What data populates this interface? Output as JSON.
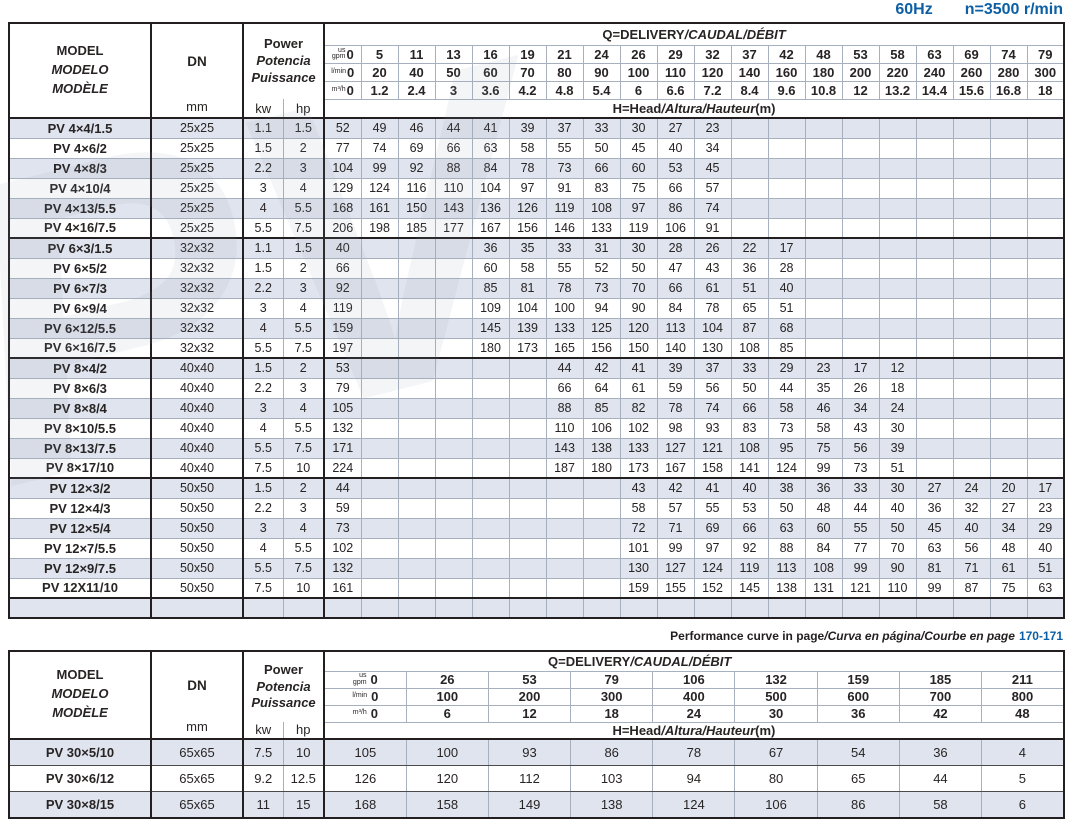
{
  "topbar": {
    "frequency": "60Hz",
    "speed": "n=3500 r/min"
  },
  "labels": {
    "model_lines": [
      "MODEL",
      "MODELO",
      "MODÈLE"
    ],
    "dn": "DN",
    "dn_unit": "mm",
    "power_lines": [
      "Power",
      "Potencia",
      "Puissance"
    ],
    "kw": "kw",
    "hp": "hp",
    "q_title": {
      "plain": "Q=DELIVERY",
      "italic": "/CAUDAL/DÉBIT"
    },
    "h_title": {
      "plain": "H=Head",
      "italic": "/Altura/Hauteur",
      "suffix": "(m)"
    },
    "units": {
      "gpm_top": "us",
      "gpm": "gpm",
      "lmin": "l/min",
      "m3h": "m³/h"
    }
  },
  "note": {
    "plain": "Performance curve in page",
    "italic": "/Curva en página/Courbe en page",
    "pages": "170-171"
  },
  "colors": {
    "accent_blue": "#0c5fa5",
    "stripe": "#dfe4ee",
    "grid_line": "#a7b0bf",
    "border": "#231f20"
  },
  "watermark": "PV",
  "table1": {
    "flows": {
      "gpm": [
        "0",
        "5",
        "11",
        "13",
        "16",
        "19",
        "21",
        "24",
        "26",
        "29",
        "32",
        "37",
        "42",
        "48",
        "53",
        "58",
        "63",
        "69",
        "74",
        "79"
      ],
      "lmin": [
        "0",
        "20",
        "40",
        "50",
        "60",
        "70",
        "80",
        "90",
        "100",
        "110",
        "120",
        "140",
        "160",
        "180",
        "200",
        "220",
        "240",
        "260",
        "280",
        "300"
      ],
      "m3h": [
        "0",
        "1.2",
        "2.4",
        "3",
        "3.6",
        "4.2",
        "4.8",
        "5.4",
        "6",
        "6.6",
        "7.2",
        "8.4",
        "9.6",
        "10.8",
        "12",
        "13.2",
        "14.4",
        "15.6",
        "16.8",
        "18"
      ]
    },
    "groups": [
      {
        "rows": [
          {
            "model": "PV 4×4/1.5",
            "dn": "25x25",
            "kw": "1.1",
            "hp": "1.5",
            "heads": [
              "52",
              "49",
              "46",
              "44",
              "41",
              "39",
              "37",
              "33",
              "30",
              "27",
              "23",
              "",
              "",
              "",
              "",
              "",
              "",
              "",
              "",
              ""
            ]
          },
          {
            "model": "PV 4×6/2",
            "dn": "25x25",
            "kw": "1.5",
            "hp": "2",
            "heads": [
              "77",
              "74",
              "69",
              "66",
              "63",
              "58",
              "55",
              "50",
              "45",
              "40",
              "34",
              "",
              "",
              "",
              "",
              "",
              "",
              "",
              "",
              ""
            ]
          },
          {
            "model": "PV 4×8/3",
            "dn": "25x25",
            "kw": "2.2",
            "hp": "3",
            "heads": [
              "104",
              "99",
              "92",
              "88",
              "84",
              "78",
              "73",
              "66",
              "60",
              "53",
              "45",
              "",
              "",
              "",
              "",
              "",
              "",
              "",
              "",
              ""
            ]
          },
          {
            "model": "PV 4×10/4",
            "dn": "25x25",
            "kw": "3",
            "hp": "4",
            "heads": [
              "129",
              "124",
              "116",
              "110",
              "104",
              "97",
              "91",
              "83",
              "75",
              "66",
              "57",
              "",
              "",
              "",
              "",
              "",
              "",
              "",
              "",
              ""
            ]
          },
          {
            "model": "PV 4×13/5.5",
            "dn": "25x25",
            "kw": "4",
            "hp": "5.5",
            "heads": [
              "168",
              "161",
              "150",
              "143",
              "136",
              "126",
              "119",
              "108",
              "97",
              "86",
              "74",
              "",
              "",
              "",
              "",
              "",
              "",
              "",
              "",
              ""
            ]
          },
          {
            "model": "PV 4×16/7.5",
            "dn": "25x25",
            "kw": "5.5",
            "hp": "7.5",
            "heads": [
              "206",
              "198",
              "185",
              "177",
              "167",
              "156",
              "146",
              "133",
              "119",
              "106",
              "91",
              "",
              "",
              "",
              "",
              "",
              "",
              "",
              "",
              ""
            ]
          }
        ]
      },
      {
        "rows": [
          {
            "model": "PV 6×3/1.5",
            "dn": "32x32",
            "kw": "1.1",
            "hp": "1.5",
            "heads": [
              "40",
              "",
              "",
              "",
              "36",
              "35",
              "33",
              "31",
              "30",
              "28",
              "26",
              "22",
              "17",
              "",
              "",
              "",
              "",
              "",
              "",
              ""
            ]
          },
          {
            "model": "PV 6×5/2",
            "dn": "32x32",
            "kw": "1.5",
            "hp": "2",
            "heads": [
              "66",
              "",
              "",
              "",
              "60",
              "58",
              "55",
              "52",
              "50",
              "47",
              "43",
              "36",
              "28",
              "",
              "",
              "",
              "",
              "",
              "",
              ""
            ]
          },
          {
            "model": "PV 6×7/3",
            "dn": "32x32",
            "kw": "2.2",
            "hp": "3",
            "heads": [
              "92",
              "",
              "",
              "",
              "85",
              "81",
              "78",
              "73",
              "70",
              "66",
              "61",
              "51",
              "40",
              "",
              "",
              "",
              "",
              "",
              "",
              ""
            ]
          },
          {
            "model": "PV 6×9/4",
            "dn": "32x32",
            "kw": "3",
            "hp": "4",
            "heads": [
              "119",
              "",
              "",
              "",
              "109",
              "104",
              "100",
              "94",
              "90",
              "84",
              "78",
              "65",
              "51",
              "",
              "",
              "",
              "",
              "",
              "",
              ""
            ]
          },
          {
            "model": "PV 6×12/5.5",
            "dn": "32x32",
            "kw": "4",
            "hp": "5.5",
            "heads": [
              "159",
              "",
              "",
              "",
              "145",
              "139",
              "133",
              "125",
              "120",
              "113",
              "104",
              "87",
              "68",
              "",
              "",
              "",
              "",
              "",
              "",
              ""
            ]
          },
          {
            "model": "PV 6×16/7.5",
            "dn": "32x32",
            "kw": "5.5",
            "hp": "7.5",
            "heads": [
              "197",
              "",
              "",
              "",
              "180",
              "173",
              "165",
              "156",
              "150",
              "140",
              "130",
              "108",
              "85",
              "",
              "",
              "",
              "",
              "",
              "",
              ""
            ]
          }
        ]
      },
      {
        "rows": [
          {
            "model": "PV 8×4/2",
            "dn": "40x40",
            "kw": "1.5",
            "hp": "2",
            "heads": [
              "53",
              "",
              "",
              "",
              "",
              "",
              "44",
              "42",
              "41",
              "39",
              "37",
              "33",
              "29",
              "23",
              "17",
              "12",
              "",
              "",
              "",
              ""
            ]
          },
          {
            "model": "PV 8×6/3",
            "dn": "40x40",
            "kw": "2.2",
            "hp": "3",
            "heads": [
              "79",
              "",
              "",
              "",
              "",
              "",
              "66",
              "64",
              "61",
              "59",
              "56",
              "50",
              "44",
              "35",
              "26",
              "18",
              "",
              "",
              "",
              ""
            ]
          },
          {
            "model": "PV 8×8/4",
            "dn": "40x40",
            "kw": "3",
            "hp": "4",
            "heads": [
              "105",
              "",
              "",
              "",
              "",
              "",
              "88",
              "85",
              "82",
              "78",
              "74",
              "66",
              "58",
              "46",
              "34",
              "24",
              "",
              "",
              "",
              ""
            ]
          },
          {
            "model": "PV 8×10/5.5",
            "dn": "40x40",
            "kw": "4",
            "hp": "5.5",
            "heads": [
              "132",
              "",
              "",
              "",
              "",
              "",
              "110",
              "106",
              "102",
              "98",
              "93",
              "83",
              "73",
              "58",
              "43",
              "30",
              "",
              "",
              "",
              ""
            ]
          },
          {
            "model": "PV 8×13/7.5",
            "dn": "40x40",
            "kw": "5.5",
            "hp": "7.5",
            "heads": [
              "171",
              "",
              "",
              "",
              "",
              "",
              "143",
              "138",
              "133",
              "127",
              "121",
              "108",
              "95",
              "75",
              "56",
              "39",
              "",
              "",
              "",
              ""
            ]
          },
          {
            "model": "PV 8×17/10",
            "dn": "40x40",
            "kw": "7.5",
            "hp": "10",
            "heads": [
              "224",
              "",
              "",
              "",
              "",
              "",
              "187",
              "180",
              "173",
              "167",
              "158",
              "141",
              "124",
              "99",
              "73",
              "51",
              "",
              "",
              "",
              ""
            ]
          }
        ]
      },
      {
        "rows": [
          {
            "model": "PV 12×3/2",
            "dn": "50x50",
            "kw": "1.5",
            "hp": "2",
            "heads": [
              "44",
              "",
              "",
              "",
              "",
              "",
              "",
              "",
              "43",
              "42",
              "41",
              "40",
              "38",
              "36",
              "33",
              "30",
              "27",
              "24",
              "20",
              "17"
            ]
          },
          {
            "model": "PV 12×4/3",
            "dn": "50x50",
            "kw": "2.2",
            "hp": "3",
            "heads": [
              "59",
              "",
              "",
              "",
              "",
              "",
              "",
              "",
              "58",
              "57",
              "55",
              "53",
              "50",
              "48",
              "44",
              "40",
              "36",
              "32",
              "27",
              "23"
            ]
          },
          {
            "model": "PV 12×5/4",
            "dn": "50x50",
            "kw": "3",
            "hp": "4",
            "heads": [
              "73",
              "",
              "",
              "",
              "",
              "",
              "",
              "",
              "72",
              "71",
              "69",
              "66",
              "63",
              "60",
              "55",
              "50",
              "45",
              "40",
              "34",
              "29"
            ]
          },
          {
            "model": "PV 12×7/5.5",
            "dn": "50x50",
            "kw": "4",
            "hp": "5.5",
            "heads": [
              "102",
              "",
              "",
              "",
              "",
              "",
              "",
              "",
              "101",
              "99",
              "97",
              "92",
              "88",
              "84",
              "77",
              "70",
              "63",
              "56",
              "48",
              "40"
            ]
          },
          {
            "model": "PV 12×9/7.5",
            "dn": "50x50",
            "kw": "5.5",
            "hp": "7.5",
            "heads": [
              "132",
              "",
              "",
              "",
              "",
              "",
              "",
              "",
              "130",
              "127",
              "124",
              "119",
              "113",
              "108",
              "99",
              "90",
              "81",
              "71",
              "61",
              "51"
            ]
          },
          {
            "model": "PV 12X11/10",
            "dn": "50x50",
            "kw": "7.5",
            "hp": "10",
            "heads": [
              "161",
              "",
              "",
              "",
              "",
              "",
              "",
              "",
              "159",
              "155",
              "152",
              "145",
              "138",
              "131",
              "121",
              "110",
              "99",
              "87",
              "75",
              "63"
            ]
          }
        ]
      },
      {
        "rows": [
          {
            "model": "",
            "dn": "",
            "kw": "",
            "hp": "",
            "heads": [
              "",
              "",
              "",
              "",
              "",
              "",
              "",
              "",
              "",
              "",
              "",
              "",
              "",
              "",
              "",
              "",
              "",
              "",
              "",
              ""
            ]
          }
        ]
      }
    ]
  },
  "table2": {
    "flows": {
      "gpm": [
        "0",
        "26",
        "53",
        "79",
        "106",
        "132",
        "159",
        "185",
        "211"
      ],
      "lmin": [
        "0",
        "100",
        "200",
        "300",
        "400",
        "500",
        "600",
        "700",
        "800"
      ],
      "m3h": [
        "0",
        "6",
        "12",
        "18",
        "24",
        "30",
        "36",
        "42",
        "48"
      ]
    },
    "groups": [
      {
        "rows": [
          {
            "model": "PV 30×5/10",
            "dn": "65x65",
            "kw": "7.5",
            "hp": "10",
            "heads": [
              "105",
              "100",
              "93",
              "86",
              "78",
              "67",
              "54",
              "36",
              "4"
            ]
          },
          {
            "model": "PV 30×6/12",
            "dn": "65x65",
            "kw": "9.2",
            "hp": "12.5",
            "heads": [
              "126",
              "120",
              "112",
              "103",
              "94",
              "80",
              "65",
              "44",
              "5"
            ]
          },
          {
            "model": "PV 30×8/15",
            "dn": "65x65",
            "kw": "11",
            "hp": "15",
            "heads": [
              "168",
              "158",
              "149",
              "138",
              "124",
              "106",
              "86",
              "58",
              "6"
            ]
          }
        ]
      }
    ]
  }
}
